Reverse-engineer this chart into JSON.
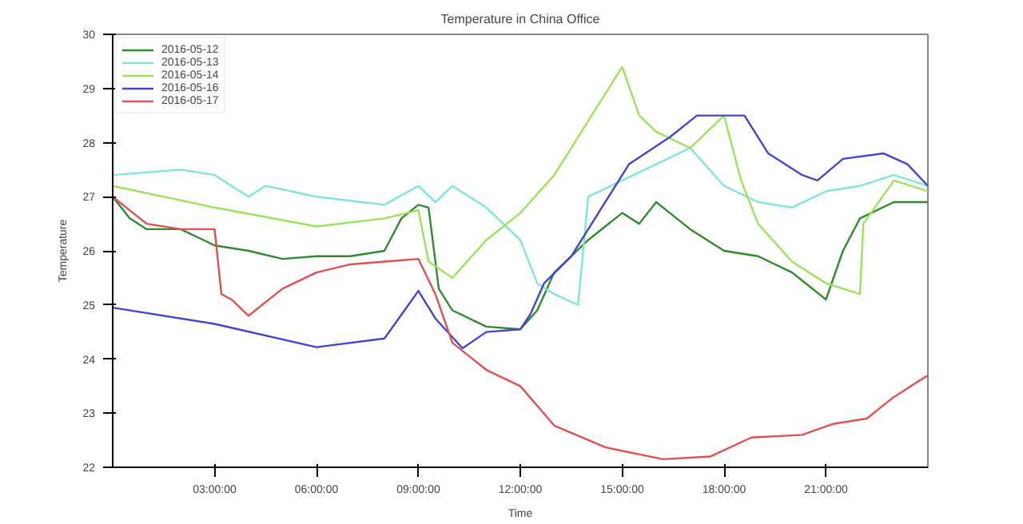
{
  "chart_data": {
    "type": "line",
    "title": "Temperature in China Office",
    "xlabel": "Time",
    "ylabel": "Temperature",
    "xlim": [
      0,
      24
    ],
    "ylim": [
      22,
      30
    ],
    "xticks": [
      {
        "value": 3,
        "label": "03:00:00"
      },
      {
        "value": 6,
        "label": "06:00:00"
      },
      {
        "value": 9,
        "label": "09:00:00"
      },
      {
        "value": 12,
        "label": "12:00:00"
      },
      {
        "value": 15,
        "label": "15:00:00"
      },
      {
        "value": 18,
        "label": "18:00:00"
      },
      {
        "value": 21,
        "label": "21:00:00"
      }
    ],
    "yticks": [
      22,
      23,
      24,
      25,
      26,
      27,
      28,
      29,
      30
    ],
    "grid": false,
    "legend": "top left",
    "marker": "none",
    "line_style": "solid",
    "series": [
      {
        "name": "2016-05-12",
        "color": "#2e8b2e",
        "x": [
          0,
          0.5,
          1,
          2,
          3,
          4,
          5,
          6,
          7,
          8,
          8.5,
          9,
          9.3,
          9.6,
          10,
          11,
          12,
          12.5,
          13,
          14,
          15,
          15.5,
          16,
          17,
          18,
          19,
          20,
          21,
          21.5,
          22,
          23,
          24
        ],
        "values": [
          27.0,
          26.6,
          26.4,
          26.4,
          26.1,
          26.0,
          25.85,
          25.9,
          25.9,
          26.0,
          26.6,
          26.85,
          26.8,
          25.3,
          24.9,
          24.6,
          24.55,
          24.9,
          25.6,
          26.2,
          26.7,
          26.5,
          26.9,
          26.4,
          26.0,
          25.9,
          25.6,
          25.1,
          26.0,
          26.6,
          26.9,
          26.9
        ]
      },
      {
        "name": "2016-05-13",
        "color": "#7fe5d8",
        "x": [
          0,
          2,
          3,
          4,
          4.5,
          6,
          8,
          9,
          9.5,
          10,
          11,
          12,
          12.5,
          13,
          13.7,
          14,
          15,
          16,
          17,
          18,
          19,
          20,
          21,
          22,
          23,
          24
        ],
        "values": [
          27.4,
          27.5,
          27.4,
          27.0,
          27.2,
          27.0,
          26.85,
          27.2,
          26.9,
          27.2,
          26.8,
          26.2,
          25.4,
          25.2,
          25.0,
          27.0,
          27.3,
          27.6,
          27.9,
          27.2,
          26.9,
          26.8,
          27.1,
          27.2,
          27.4,
          27.2
        ]
      },
      {
        "name": "2016-05-14",
        "color": "#9be35a",
        "x": [
          0,
          3,
          6,
          8,
          9,
          9.3,
          10,
          11,
          12,
          13,
          14,
          15,
          15.5,
          16,
          17,
          18,
          18.5,
          19,
          20,
          21,
          22,
          22.1,
          23,
          24
        ],
        "values": [
          27.2,
          26.8,
          26.45,
          26.6,
          26.75,
          25.8,
          25.5,
          26.2,
          26.7,
          27.4,
          28.4,
          29.4,
          28.5,
          28.2,
          27.9,
          28.5,
          27.3,
          26.5,
          25.8,
          25.4,
          25.2,
          26.5,
          27.3,
          27.1
        ]
      },
      {
        "name": "2016-05-16",
        "color": "#4444cc",
        "x": [
          0,
          3,
          6,
          8,
          9,
          9.5,
          10.3,
          11,
          12,
          12.3,
          12.7,
          13.5,
          15.2,
          16.4,
          17.2,
          18.6,
          19.3,
          20.3,
          20.75,
          21.5,
          22.7,
          23.4,
          24
        ],
        "values": [
          24.95,
          24.65,
          24.22,
          24.38,
          25.26,
          24.75,
          24.2,
          24.5,
          24.55,
          24.83,
          25.4,
          25.9,
          27.6,
          28.1,
          28.5,
          28.5,
          27.8,
          27.4,
          27.3,
          27.7,
          27.8,
          27.6,
          27.2
        ]
      },
      {
        "name": "2016-05-17",
        "color": "#e05050",
        "x": [
          0,
          1,
          2,
          3,
          3.2,
          3.5,
          4,
          5,
          6,
          7,
          8,
          9,
          9.5,
          10,
          10.5,
          11,
          12,
          13,
          14.5,
          16.2,
          17.6,
          18.8,
          20.3,
          21.2,
          22.2,
          23,
          24
        ],
        "values": [
          27.0,
          26.5,
          26.4,
          26.4,
          25.2,
          25.1,
          24.8,
          25.3,
          25.6,
          25.75,
          25.8,
          25.85,
          25.2,
          24.3,
          24.05,
          23.8,
          23.5,
          22.77,
          22.37,
          22.15,
          22.2,
          22.55,
          22.6,
          22.8,
          22.9,
          23.3,
          23.7
        ]
      }
    ]
  }
}
